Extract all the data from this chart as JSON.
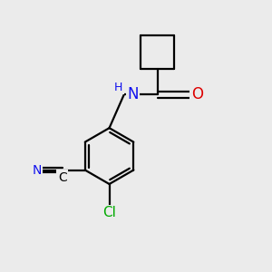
{
  "background_color": "#ebebeb",
  "bond_color": "#000000",
  "bond_width": 1.6,
  "atom_colors": {
    "N": "#1010ee",
    "O": "#dd0000",
    "Cl": "#00aa00",
    "C": "#000000"
  },
  "font_size": 11,
  "fig_size": [
    3.0,
    3.0
  ],
  "dpi": 100
}
